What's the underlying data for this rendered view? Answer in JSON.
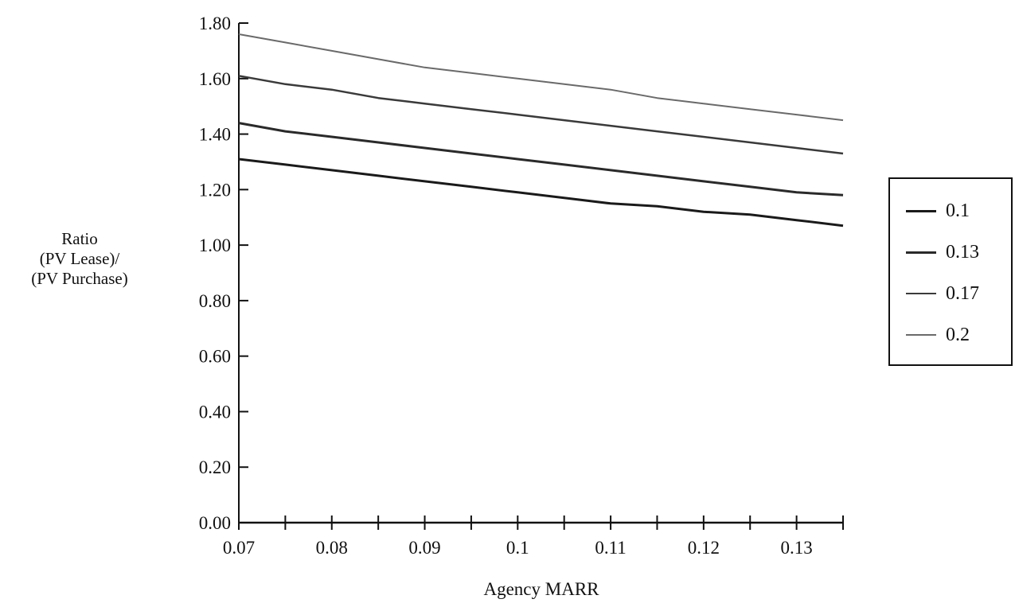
{
  "chart_data": {
    "type": "line",
    "title": "",
    "xlabel": "Agency MARR",
    "ylabel_lines": [
      "Ratio",
      "(PV Lease)/",
      "(PV Purchase)"
    ],
    "xlim": [
      0.07,
      0.135
    ],
    "ylim": [
      0,
      1.8
    ],
    "x_ticks": [
      0.07,
      0.08,
      0.09,
      0.1,
      0.11,
      0.12,
      0.13
    ],
    "x_tick_labels": [
      "0.07",
      "0.08",
      "0.09",
      "0.1",
      "0.11",
      "0.12",
      "0.13"
    ],
    "y_ticks": [
      0,
      0.2,
      0.4,
      0.6,
      0.8,
      1.0,
      1.2,
      1.4,
      1.6,
      1.8
    ],
    "y_tick_labels": [
      "0.00",
      "0.20",
      "0.40",
      "0.60",
      "0.80",
      "1.00",
      "1.20",
      "1.40",
      "1.60",
      "1.80"
    ],
    "grid": false,
    "legend_position": "right",
    "x": [
      0.07,
      0.075,
      0.08,
      0.085,
      0.09,
      0.095,
      0.1,
      0.105,
      0.11,
      0.115,
      0.12,
      0.125,
      0.13,
      0.135
    ],
    "series": [
      {
        "name": "0.1",
        "color": "#1a1a1a",
        "width": 3,
        "values": [
          1.31,
          1.29,
          1.27,
          1.25,
          1.23,
          1.21,
          1.19,
          1.17,
          1.15,
          1.14,
          1.12,
          1.11,
          1.09,
          1.07
        ]
      },
      {
        "name": "0.13",
        "color": "#2a2a2a",
        "width": 3,
        "values": [
          1.44,
          1.41,
          1.39,
          1.37,
          1.35,
          1.33,
          1.31,
          1.29,
          1.27,
          1.25,
          1.23,
          1.21,
          1.19,
          1.18
        ]
      },
      {
        "name": "0.17",
        "color": "#3a3a3a",
        "width": 2.5,
        "values": [
          1.61,
          1.58,
          1.56,
          1.53,
          1.51,
          1.49,
          1.47,
          1.45,
          1.43,
          1.41,
          1.39,
          1.37,
          1.35,
          1.33
        ]
      },
      {
        "name": "0.2",
        "color": "#6a6a6a",
        "width": 2,
        "values": [
          1.76,
          1.73,
          1.7,
          1.67,
          1.64,
          1.62,
          1.6,
          1.58,
          1.56,
          1.53,
          1.51,
          1.49,
          1.47,
          1.45
        ]
      }
    ]
  }
}
